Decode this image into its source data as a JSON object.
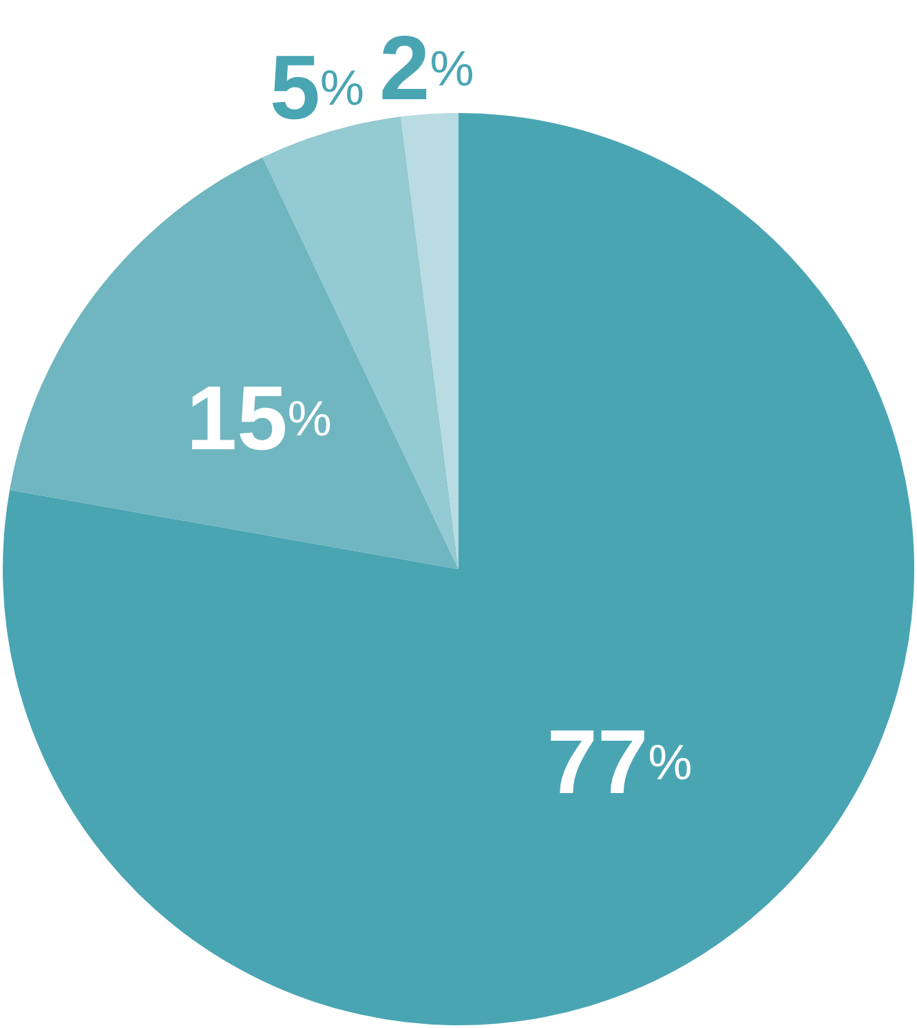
{
  "chart_data": {
    "type": "pie",
    "categories": [
      null,
      null,
      null,
      null
    ],
    "values": [
      77,
      15,
      5,
      2
    ],
    "colors": [
      "#4aa5b3",
      "#6fb6c0",
      "#94cad1",
      "#b8dce2"
    ],
    "value_labels": [
      "77%",
      "15%",
      "5%",
      "2%"
    ]
  }
}
